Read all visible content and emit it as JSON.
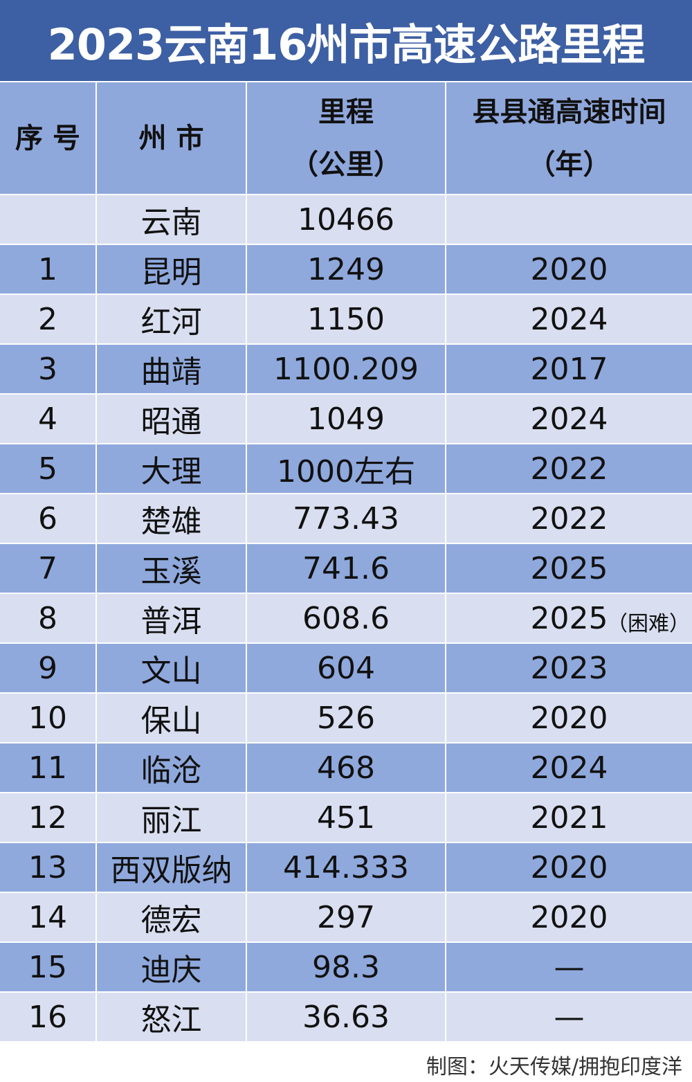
{
  "title": "2023云南16州市高速公路里程",
  "chart_data": {
    "type": "table",
    "title": "2023云南16州市高速公路里程",
    "headers": {
      "index": "序 号",
      "city": "州 市",
      "mileage_line1": "里程",
      "mileage_line2": "（公里）",
      "year_line1": "县县通高速时间",
      "year_line2": "（年）"
    },
    "rows": [
      {
        "index": "",
        "city": "云南",
        "mileage": "10466",
        "year": "",
        "note": ""
      },
      {
        "index": "1",
        "city": "昆明",
        "mileage": "1249",
        "year": "2020",
        "note": ""
      },
      {
        "index": "2",
        "city": "红河",
        "mileage": "1150",
        "year": "2024",
        "note": ""
      },
      {
        "index": "3",
        "city": "曲靖",
        "mileage": "1100.209",
        "year": "2017",
        "note": ""
      },
      {
        "index": "4",
        "city": "昭通",
        "mileage": "1049",
        "year": "2024",
        "note": ""
      },
      {
        "index": "5",
        "city": "大理",
        "mileage": "1000左右",
        "year": "2022",
        "note": ""
      },
      {
        "index": "6",
        "city": "楚雄",
        "mileage": "773.43",
        "year": "2022",
        "note": ""
      },
      {
        "index": "7",
        "city": "玉溪",
        "mileage": "741.6",
        "year": "2025",
        "note": ""
      },
      {
        "index": "8",
        "city": "普洱",
        "mileage": "608.6",
        "year": "2025",
        "note": "（困难）"
      },
      {
        "index": "9",
        "city": "文山",
        "mileage": "604",
        "year": "2023",
        "note": ""
      },
      {
        "index": "10",
        "city": "保山",
        "mileage": "526",
        "year": "2020",
        "note": ""
      },
      {
        "index": "11",
        "city": "临沧",
        "mileage": "468",
        "year": "2024",
        "note": ""
      },
      {
        "index": "12",
        "city": "丽江",
        "mileage": "451",
        "year": "2021",
        "note": ""
      },
      {
        "index": "13",
        "city": "西双版纳",
        "mileage": "414.333",
        "year": "2020",
        "note": ""
      },
      {
        "index": "14",
        "city": "德宏",
        "mileage": "297",
        "year": "2020",
        "note": ""
      },
      {
        "index": "15",
        "city": "迪庆",
        "mileage": "98.3",
        "year": "—",
        "note": ""
      },
      {
        "index": "16",
        "city": "怒江",
        "mileage": "36.63",
        "year": "—",
        "note": ""
      }
    ]
  },
  "colors": {
    "title_bg": "#3d5fa3",
    "header_bg": "#8fa8dc",
    "row_dark": "#8fa9dd",
    "row_light": "#d9dff0"
  },
  "footer": "制图：火天传媒/拥抱印度洋"
}
